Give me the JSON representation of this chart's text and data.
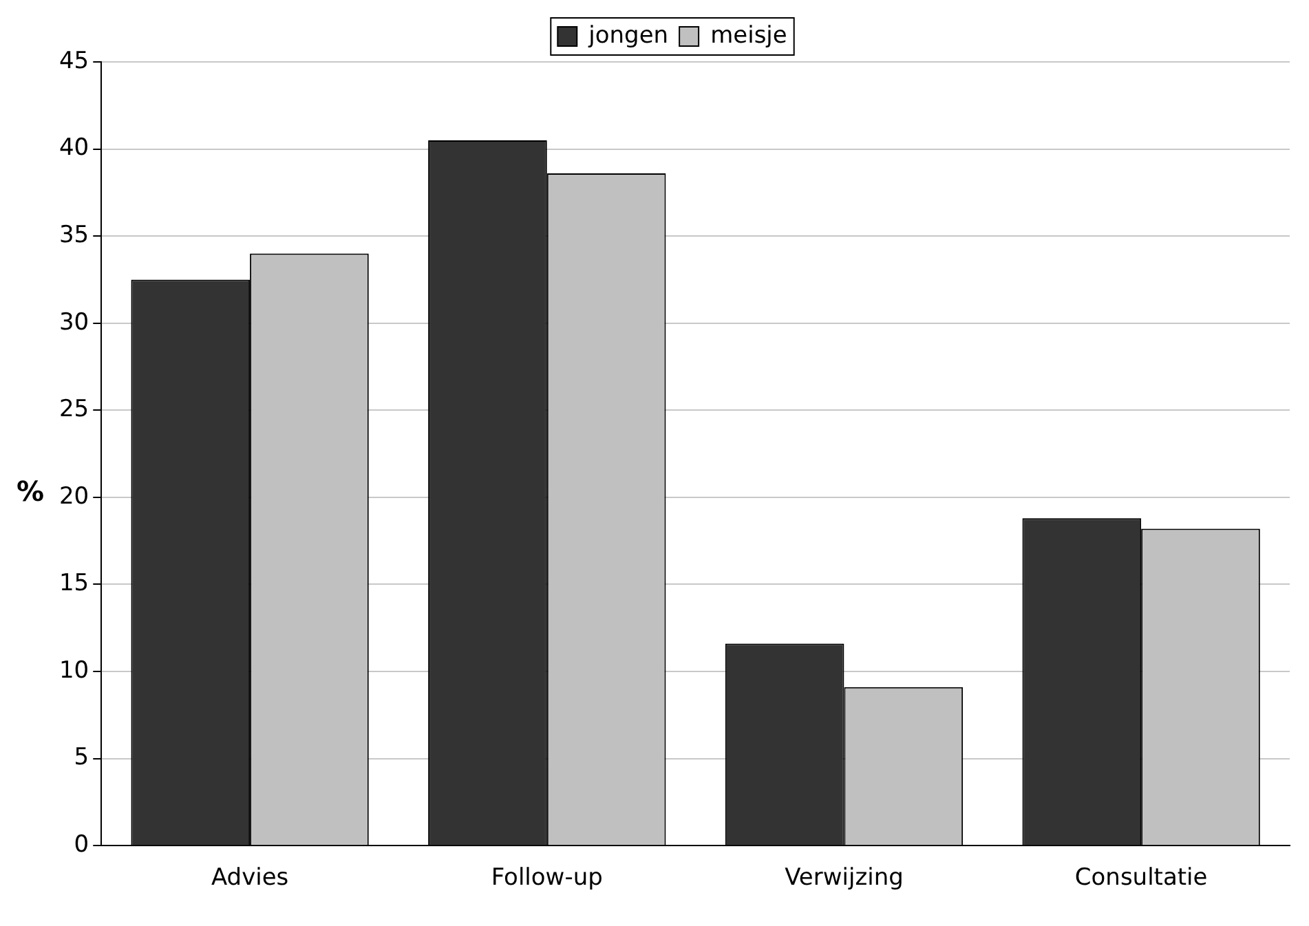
{
  "chart_data": {
    "type": "bar",
    "ylabel": "%",
    "categories": [
      "Advies",
      "Follow-up",
      "Verwijzing",
      "Consultatie"
    ],
    "series": [
      {
        "name": "jongen",
        "color": "#333333",
        "values": [
          32.5,
          40.5,
          11.6,
          18.8
        ]
      },
      {
        "name": "meisje",
        "color": "#c0c0c0",
        "values": [
          34,
          38.6,
          9.1,
          18.2
        ]
      }
    ],
    "ylim": [
      0,
      45
    ],
    "yticks": [
      0,
      5,
      10,
      15,
      20,
      25,
      30,
      35,
      40,
      45
    ],
    "grid": "y",
    "legend": "top"
  }
}
